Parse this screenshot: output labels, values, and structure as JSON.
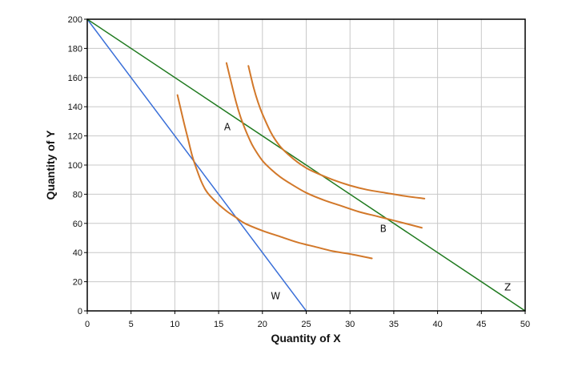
{
  "chart_data": {
    "type": "line",
    "xlabel": "Quantity of X",
    "ylabel": "Quantity of Y",
    "xlim": [
      0,
      50
    ],
    "ylim": [
      0,
      200
    ],
    "xticks": [
      0,
      5,
      10,
      15,
      20,
      25,
      30,
      35,
      40,
      45,
      50
    ],
    "yticks": [
      0,
      20,
      40,
      60,
      80,
      100,
      120,
      140,
      160,
      180,
      200
    ],
    "grid": true,
    "legend": "none",
    "series": [
      {
        "kind": "budget-line",
        "color": "#3a6fd8",
        "x": [
          0,
          25
        ],
        "y": [
          200,
          0
        ]
      },
      {
        "kind": "budget-line",
        "color": "#1f7a1f",
        "x": [
          0,
          50
        ],
        "y": [
          200,
          0
        ]
      },
      {
        "kind": "indifference-curve",
        "color": "#d2782a",
        "x": [
          10.3,
          11,
          11.5,
          12,
          12.5,
          13,
          13.5,
          14,
          15,
          16,
          17,
          18,
          20,
          22,
          24,
          26,
          28,
          30,
          32.5
        ],
        "y": [
          148,
          130,
          118,
          106,
          97,
          89,
          83,
          79,
          73,
          68,
          64,
          60,
          55,
          51,
          47,
          44,
          41,
          39,
          36
        ]
      },
      {
        "kind": "indifference-curve",
        "color": "#d2782a",
        "x": [
          15.9,
          16.5,
          17,
          17.5,
          18,
          18.5,
          19,
          20,
          21,
          22,
          23,
          25,
          27,
          29,
          31,
          33,
          35,
          38.2
        ],
        "y": [
          170,
          155,
          143,
          133,
          125,
          118,
          112,
          103,
          97,
          92,
          88,
          81,
          76,
          72,
          68,
          65,
          62,
          57
        ]
      },
      {
        "kind": "indifference-curve",
        "color": "#d2782a",
        "x": [
          18.4,
          19,
          19.5,
          20,
          21,
          22,
          23,
          24,
          25,
          26,
          28,
          30,
          32,
          34,
          36,
          38.5
        ],
        "y": [
          168,
          153,
          143,
          135,
          122,
          113,
          107,
          102,
          98,
          95,
          90,
          86,
          83,
          81,
          79,
          77
        ]
      }
    ],
    "annotations": [
      {
        "text": "A",
        "x": 16,
        "y": 124
      },
      {
        "text": "B",
        "x": 33.8,
        "y": 54
      },
      {
        "text": "W",
        "x": 21.5,
        "y": 8
      },
      {
        "text": "Z",
        "x": 48,
        "y": 14
      }
    ]
  }
}
